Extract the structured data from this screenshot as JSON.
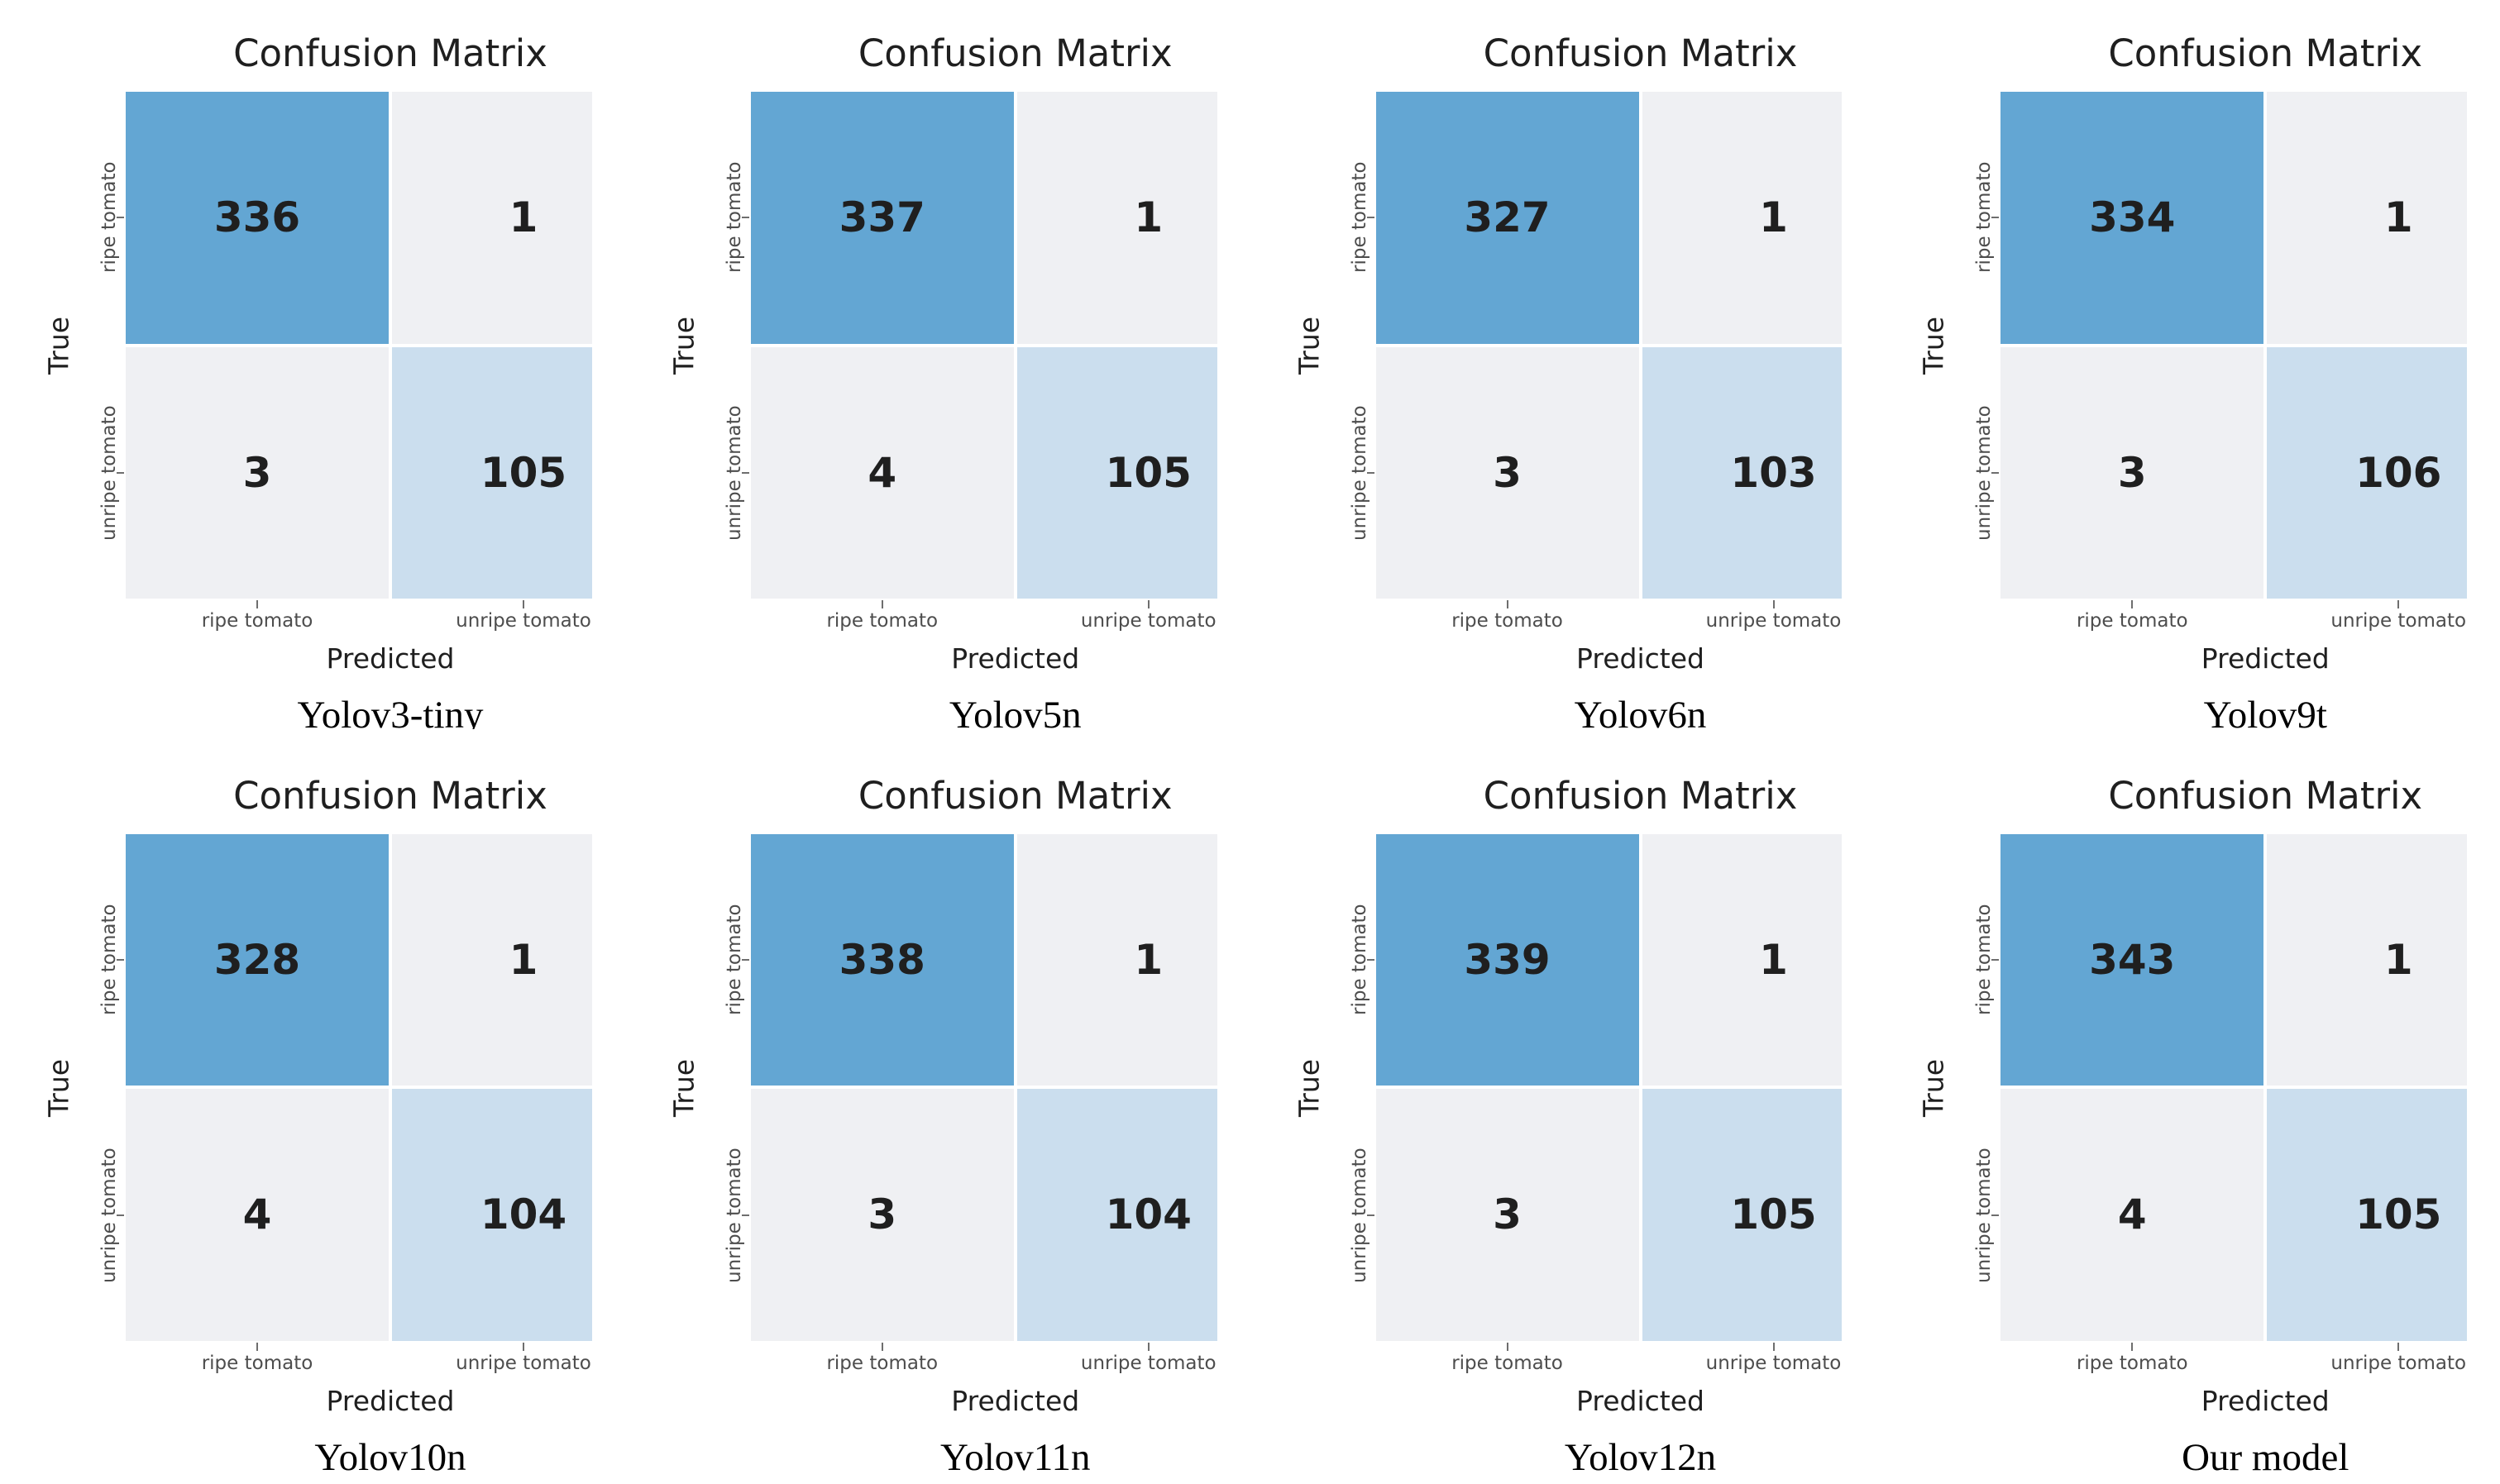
{
  "colors": {
    "cell_high": "#63a6d3",
    "cell_mid": "#cbdeee",
    "cell_low": "#eff0f3",
    "number_text": "#1f1f1f",
    "title_text": "#1f1f1f",
    "axis_label": "#1f1f1f",
    "tick_label": "#4d4d4d",
    "tick_mark": "#6e6e6e",
    "caption_text": "#000000",
    "background": "#ffffff"
  },
  "chart_data": [
    {
      "type": "heatmap",
      "model": "Yolov3-tiny",
      "title": "Confusion Matrix",
      "xlabel": "Predicted",
      "ylabel": "True",
      "x_categories": [
        "ripe tomato",
        "unripe tomato"
      ],
      "y_categories": [
        "ripe tomato",
        "unripe tomato"
      ],
      "matrix": [
        [
          336,
          1
        ],
        [
          3,
          105
        ]
      ],
      "colormap": "Blues",
      "legend": "none"
    },
    {
      "type": "heatmap",
      "model": "Yolov5n",
      "title": "Confusion Matrix",
      "xlabel": "Predicted",
      "ylabel": "True",
      "x_categories": [
        "ripe tomato",
        "unripe tomato"
      ],
      "y_categories": [
        "ripe tomato",
        "unripe tomato"
      ],
      "matrix": [
        [
          337,
          1
        ],
        [
          4,
          105
        ]
      ],
      "colormap": "Blues",
      "legend": "none"
    },
    {
      "type": "heatmap",
      "model": "Yolov6n",
      "title": "Confusion Matrix",
      "xlabel": "Predicted",
      "ylabel": "True",
      "x_categories": [
        "ripe tomato",
        "unripe tomato"
      ],
      "y_categories": [
        "ripe tomato",
        "unripe tomato"
      ],
      "matrix": [
        [
          327,
          1
        ],
        [
          3,
          103
        ]
      ],
      "colormap": "Blues",
      "legend": "none"
    },
    {
      "type": "heatmap",
      "model": "Yolov9t",
      "title": "Confusion Matrix",
      "xlabel": "Predicted",
      "ylabel": "True",
      "x_categories": [
        "ripe tomato",
        "unripe tomato"
      ],
      "y_categories": [
        "ripe tomato",
        "unripe tomato"
      ],
      "matrix": [
        [
          334,
          1
        ],
        [
          3,
          106
        ]
      ],
      "colormap": "Blues",
      "legend": "none"
    },
    {
      "type": "heatmap",
      "model": "Yolov10n",
      "title": "Confusion Matrix",
      "xlabel": "Predicted",
      "ylabel": "True",
      "x_categories": [
        "ripe tomato",
        "unripe tomato"
      ],
      "y_categories": [
        "ripe tomato",
        "unripe tomato"
      ],
      "matrix": [
        [
          328,
          1
        ],
        [
          4,
          104
        ]
      ],
      "colormap": "Blues",
      "legend": "none"
    },
    {
      "type": "heatmap",
      "model": "Yolov11n",
      "title": "Confusion Matrix",
      "xlabel": "Predicted",
      "ylabel": "True",
      "x_categories": [
        "ripe tomato",
        "unripe tomato"
      ],
      "y_categories": [
        "ripe tomato",
        "unripe tomato"
      ],
      "matrix": [
        [
          338,
          1
        ],
        [
          3,
          104
        ]
      ],
      "colormap": "Blues",
      "legend": "none"
    },
    {
      "type": "heatmap",
      "model": "Yolov12n",
      "title": "Confusion Matrix",
      "xlabel": "Predicted",
      "ylabel": "True",
      "x_categories": [
        "ripe tomato",
        "unripe tomato"
      ],
      "y_categories": [
        "ripe tomato",
        "unripe tomato"
      ],
      "matrix": [
        [
          339,
          1
        ],
        [
          3,
          105
        ]
      ],
      "colormap": "Blues",
      "legend": "none"
    },
    {
      "type": "heatmap",
      "model": "Our model",
      "title": "Confusion Matrix",
      "xlabel": "Predicted",
      "ylabel": "True",
      "x_categories": [
        "ripe tomato",
        "unripe tomato"
      ],
      "y_categories": [
        "ripe tomato",
        "unripe tomato"
      ],
      "matrix": [
        [
          343,
          1
        ],
        [
          4,
          105
        ]
      ],
      "colormap": "Blues",
      "legend": "none"
    }
  ]
}
